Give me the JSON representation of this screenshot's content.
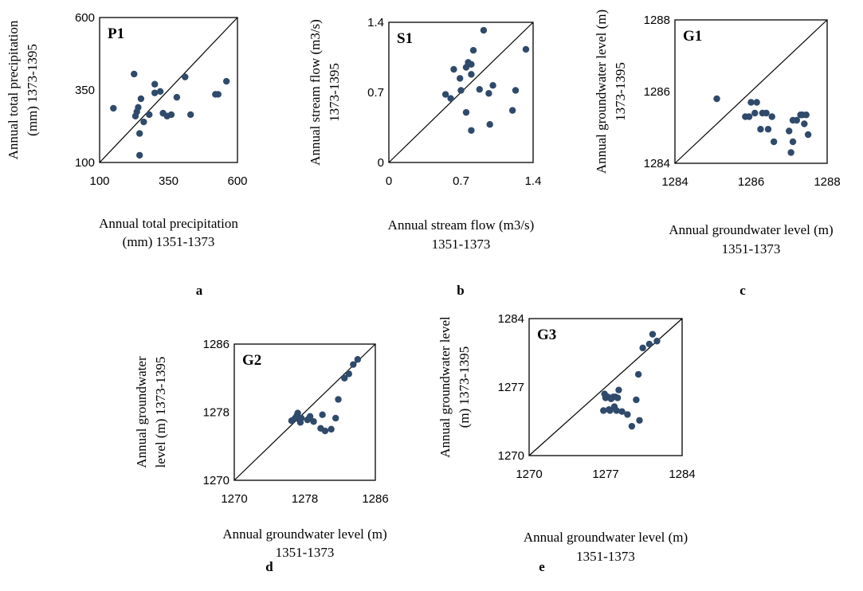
{
  "chart_data": [
    {
      "id": "a",
      "type": "scatter",
      "panel_label": "P1",
      "subfigure_label": "a",
      "xlabel_lines": [
        "Annual total precipitation",
        "(mm)  1351-1373"
      ],
      "ylabel_lines": [
        "Annual total precipitation",
        "(mm)  1373-1395"
      ],
      "xlim": [
        100,
        600
      ],
      "ylim": [
        100,
        600
      ],
      "xticks": [
        "100",
        "350",
        "600"
      ],
      "yticks": [
        "100",
        "350",
        "600"
      ],
      "reference_line": "y = x",
      "points": [
        [
          150,
          287
        ],
        [
          225,
          405
        ],
        [
          240,
          290
        ],
        [
          250,
          320
        ],
        [
          235,
          275
        ],
        [
          230,
          260
        ],
        [
          260,
          240
        ],
        [
          245,
          200
        ],
        [
          245,
          125
        ],
        [
          280,
          265
        ],
        [
          300,
          370
        ],
        [
          300,
          340
        ],
        [
          320,
          345
        ],
        [
          330,
          270
        ],
        [
          345,
          260
        ],
        [
          360,
          265
        ],
        [
          380,
          325
        ],
        [
          410,
          395
        ],
        [
          430,
          265
        ],
        [
          520,
          335
        ],
        [
          530,
          335
        ],
        [
          560,
          380
        ]
      ]
    },
    {
      "id": "b",
      "type": "scatter",
      "panel_label": "S1",
      "subfigure_label": "b",
      "xlabel_lines": [
        "Annual stream flow (m3/s)",
        "1351-1373"
      ],
      "ylabel_lines": [
        "Annual stream flow (m3/s)",
        "1373-1395"
      ],
      "xlim": [
        0,
        1.4
      ],
      "ylim": [
        0,
        1.4
      ],
      "xticks": [
        "0",
        "0.7",
        "1.4"
      ],
      "yticks": [
        "0",
        "0.7",
        "1.4"
      ],
      "reference_line": "y = x",
      "points": [
        [
          0.55,
          0.68
        ],
        [
          0.6,
          0.64
        ],
        [
          0.63,
          0.93
        ],
        [
          0.69,
          0.84
        ],
        [
          0.7,
          0.72
        ],
        [
          0.75,
          0.95
        ],
        [
          0.75,
          0.5
        ],
        [
          0.77,
          1.0
        ],
        [
          0.8,
          0.88
        ],
        [
          0.8,
          0.98
        ],
        [
          0.82,
          1.12
        ],
        [
          0.8,
          0.32
        ],
        [
          0.88,
          0.73
        ],
        [
          0.92,
          1.32
        ],
        [
          0.97,
          0.69
        ],
        [
          0.98,
          0.38
        ],
        [
          1.01,
          0.77
        ],
        [
          1.2,
          0.52
        ],
        [
          1.23,
          0.72
        ],
        [
          1.33,
          1.13
        ]
      ]
    },
    {
      "id": "c",
      "type": "scatter",
      "panel_label": "G1",
      "subfigure_label": "c",
      "xlabel_lines": [
        "Annual groundwater level (m)",
        "1351-1373"
      ],
      "ylabel_lines": [
        "Annual groundwater level (m)",
        "1373-1395"
      ],
      "xlim": [
        1284,
        1288
      ],
      "ylim": [
        1284,
        1288
      ],
      "xticks": [
        "1284",
        "1286",
        "1288"
      ],
      "yticks": [
        "1284",
        "1286",
        "1288"
      ],
      "reference_line": "y = x",
      "points": [
        [
          1285.1,
          1285.8
        ],
        [
          1285.85,
          1285.3
        ],
        [
          1285.95,
          1285.3
        ],
        [
          1286.0,
          1285.7
        ],
        [
          1286.1,
          1285.4
        ],
        [
          1286.15,
          1285.7
        ],
        [
          1286.25,
          1284.95
        ],
        [
          1286.3,
          1285.4
        ],
        [
          1286.4,
          1285.4
        ],
        [
          1286.45,
          1284.95
        ],
        [
          1286.55,
          1285.3
        ],
        [
          1286.6,
          1284.6
        ],
        [
          1287.0,
          1284.9
        ],
        [
          1287.05,
          1284.3
        ],
        [
          1287.1,
          1285.2
        ],
        [
          1287.1,
          1284.6
        ],
        [
          1287.2,
          1285.2
        ],
        [
          1287.3,
          1285.35
        ],
        [
          1287.35,
          1285.35
        ],
        [
          1287.4,
          1285.1
        ],
        [
          1287.45,
          1285.35
        ],
        [
          1287.5,
          1284.8
        ]
      ]
    },
    {
      "id": "d",
      "type": "scatter",
      "panel_label": "G2",
      "subfigure_label": "d",
      "xlabel_lines": [
        "Annual groundwater level (m)",
        "1351-1373"
      ],
      "ylabel_lines": [
        "Annual groundwater",
        "level (m)  1373-1395"
      ],
      "xlim": [
        1270,
        1286
      ],
      "ylim": [
        1270,
        1286
      ],
      "xticks": [
        "1270",
        "1278",
        "1286"
      ],
      "yticks": [
        "1270",
        "1278",
        "1286"
      ],
      "reference_line": "y = x",
      "points": [
        [
          1276.5,
          1277.0
        ],
        [
          1276.9,
          1277.3
        ],
        [
          1277.1,
          1277.6
        ],
        [
          1277.2,
          1277.9
        ],
        [
          1277.3,
          1277.2
        ],
        [
          1277.5,
          1276.8
        ],
        [
          1277.6,
          1277.3
        ],
        [
          1278.3,
          1277.1
        ],
        [
          1278.5,
          1277.3
        ],
        [
          1278.6,
          1277.5
        ],
        [
          1279.0,
          1276.9
        ],
        [
          1279.8,
          1276.1
        ],
        [
          1280.0,
          1277.7
        ],
        [
          1280.3,
          1275.8
        ],
        [
          1281.0,
          1276.0
        ],
        [
          1281.5,
          1277.3
        ],
        [
          1281.8,
          1279.5
        ],
        [
          1282.5,
          1282.0
        ],
        [
          1283.0,
          1282.5
        ],
        [
          1283.5,
          1283.6
        ],
        [
          1284.0,
          1284.2
        ]
      ]
    },
    {
      "id": "e",
      "type": "scatter",
      "panel_label": "G3",
      "subfigure_label": "e",
      "xlabel_lines": [
        "Annual groundwater level (m)",
        "1351-1373"
      ],
      "ylabel_lines": [
        "Annual groundwater level",
        "(m)  1373-1395"
      ],
      "xlim": [
        1270,
        1284
      ],
      "ylim": [
        1270,
        1284
      ],
      "xticks": [
        "1270",
        "1277",
        "1284"
      ],
      "yticks": [
        "1270",
        "1277",
        "1284"
      ],
      "reference_line": "y = x",
      "points": [
        [
          1276.8,
          1274.6
        ],
        [
          1276.9,
          1276.3
        ],
        [
          1277.0,
          1275.9
        ],
        [
          1277.2,
          1276.0
        ],
        [
          1277.3,
          1274.7
        ],
        [
          1277.4,
          1274.6
        ],
        [
          1277.5,
          1275.8
        ],
        [
          1277.7,
          1276.0
        ],
        [
          1277.8,
          1275.0
        ],
        [
          1277.9,
          1276.0
        ],
        [
          1278.0,
          1274.6
        ],
        [
          1278.1,
          1275.9
        ],
        [
          1278.2,
          1276.7
        ],
        [
          1278.5,
          1274.5
        ],
        [
          1279.0,
          1274.2
        ],
        [
          1279.4,
          1273.0
        ],
        [
          1279.8,
          1275.7
        ],
        [
          1280.0,
          1278.3
        ],
        [
          1280.1,
          1273.6
        ],
        [
          1280.4,
          1281.0
        ],
        [
          1281.0,
          1281.4
        ],
        [
          1281.3,
          1282.4
        ],
        [
          1281.7,
          1281.7
        ]
      ]
    }
  ],
  "style": {
    "marker_color": "#2f4a6b",
    "axis_color": "#000000",
    "background": "#ffffff"
  }
}
